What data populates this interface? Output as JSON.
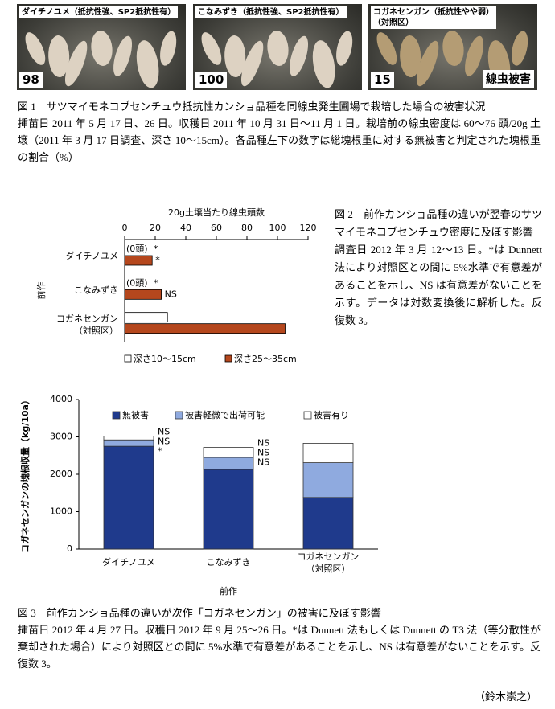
{
  "document": {
    "figure1": {
      "panels": [
        {
          "label": "ダイチノユメ（抵抗性強、SP2抵抗性有）",
          "score": "98"
        },
        {
          "label": "こなみずき（抵抗性強、SP2抵抗性有）",
          "score": "100"
        },
        {
          "label": "コガネセンガン（抵抗性やや弱）\n（対照区）",
          "score": "15",
          "note": "線虫被害"
        }
      ],
      "caption_title": "図 1　サツマイモネコブセンチュウ抵抗性カンショ品種を同線虫発生圃場で栽培した場合の被害状況",
      "caption_body": "挿苗日 2011 年 5 月 17 日、26 日。収穫日 2011 年 10 月 31 日～11 月 1 日。栽培前の線虫密度は 60～76 頭/20g 土壌（2011 年 3 月 17 日調査、深さ 10～15cm）。各品種左下の数字は総塊根重に対する無被害と判定された塊根重の割合（%）"
    },
    "figure2": {
      "caption_title": "図 2　前作カンショ品種の違いが翌春のサツマイモネコブセンチュウ密度に及ぼす影響",
      "caption_body": "調査日 2012 年 3 月 12～13 日。*は Dunnett 法により対照区との間に 5%水準で有意差があることを示し、NS は有意差がないことを示す。データは対数変換後に解析した。反復数 3。"
    },
    "figure3": {
      "caption_title": "図 3　前作カンショ品種の違いが次作「コガネセンガン」の被害に及ぼす影響",
      "caption_body": "挿苗日 2012 年 4 月 27 日。収穫日 2012 年 9 月 25～26 日。*は Dunnett 法もしくは Dunnett の T3 法（等分散性が棄却された場合）により対照区との間に 5%水準で有意差があることを示し、NS は有意差がないことを示す。反復数 3。"
    },
    "author": "（鈴木崇之）"
  },
  "chart_data": [
    {
      "type": "bar",
      "orientation": "horizontal",
      "x_label": "20g土壌当たり線虫頭数",
      "y_label": "前作",
      "categories": [
        "ダイチノユメ",
        "こなみずき",
        "コガネセンガン\n（対照区）"
      ],
      "series": [
        {
          "name": "深さ10～15cm",
          "color": "#ffffff",
          "values": [
            0,
            0,
            28
          ],
          "value_labels": [
            "(0頭)",
            "(0頭)",
            null
          ],
          "significance": [
            "*",
            "*",
            null
          ]
        },
        {
          "name": "深さ25～35cm",
          "color": "#b5471d",
          "values": [
            18,
            24,
            105
          ],
          "significance": [
            "*",
            "NS",
            null
          ]
        }
      ],
      "xlim": [
        0,
        120
      ],
      "xticks": [
        0,
        20,
        40,
        60,
        80,
        100,
        120
      ],
      "legend": "bottom"
    },
    {
      "type": "bar",
      "stacked": true,
      "x_label": "前作",
      "y_label": "コガネセンガンの塊根収量（kg/10a）",
      "categories": [
        "ダイチノユメ",
        "こなみずき",
        "コガネセンガン\n（対照区）"
      ],
      "series": [
        {
          "name": "無被害",
          "color": "#1f3a8c",
          "values": [
            2750,
            2130,
            1380
          ],
          "significance": [
            "*",
            "NS",
            null
          ]
        },
        {
          "name": "被害軽微で出荷可能",
          "color": "#8faadf",
          "values": [
            170,
            320,
            930
          ],
          "significance": [
            "NS",
            "NS",
            null
          ]
        },
        {
          "name": "被害有り",
          "color": "#ffffff",
          "values": [
            100,
            270,
            520
          ],
          "significance": [
            "NS",
            "NS",
            null
          ]
        }
      ],
      "ylim": [
        0,
        4000
      ],
      "yticks": [
        0,
        1000,
        2000,
        3000,
        4000
      ],
      "legend": "top"
    }
  ]
}
